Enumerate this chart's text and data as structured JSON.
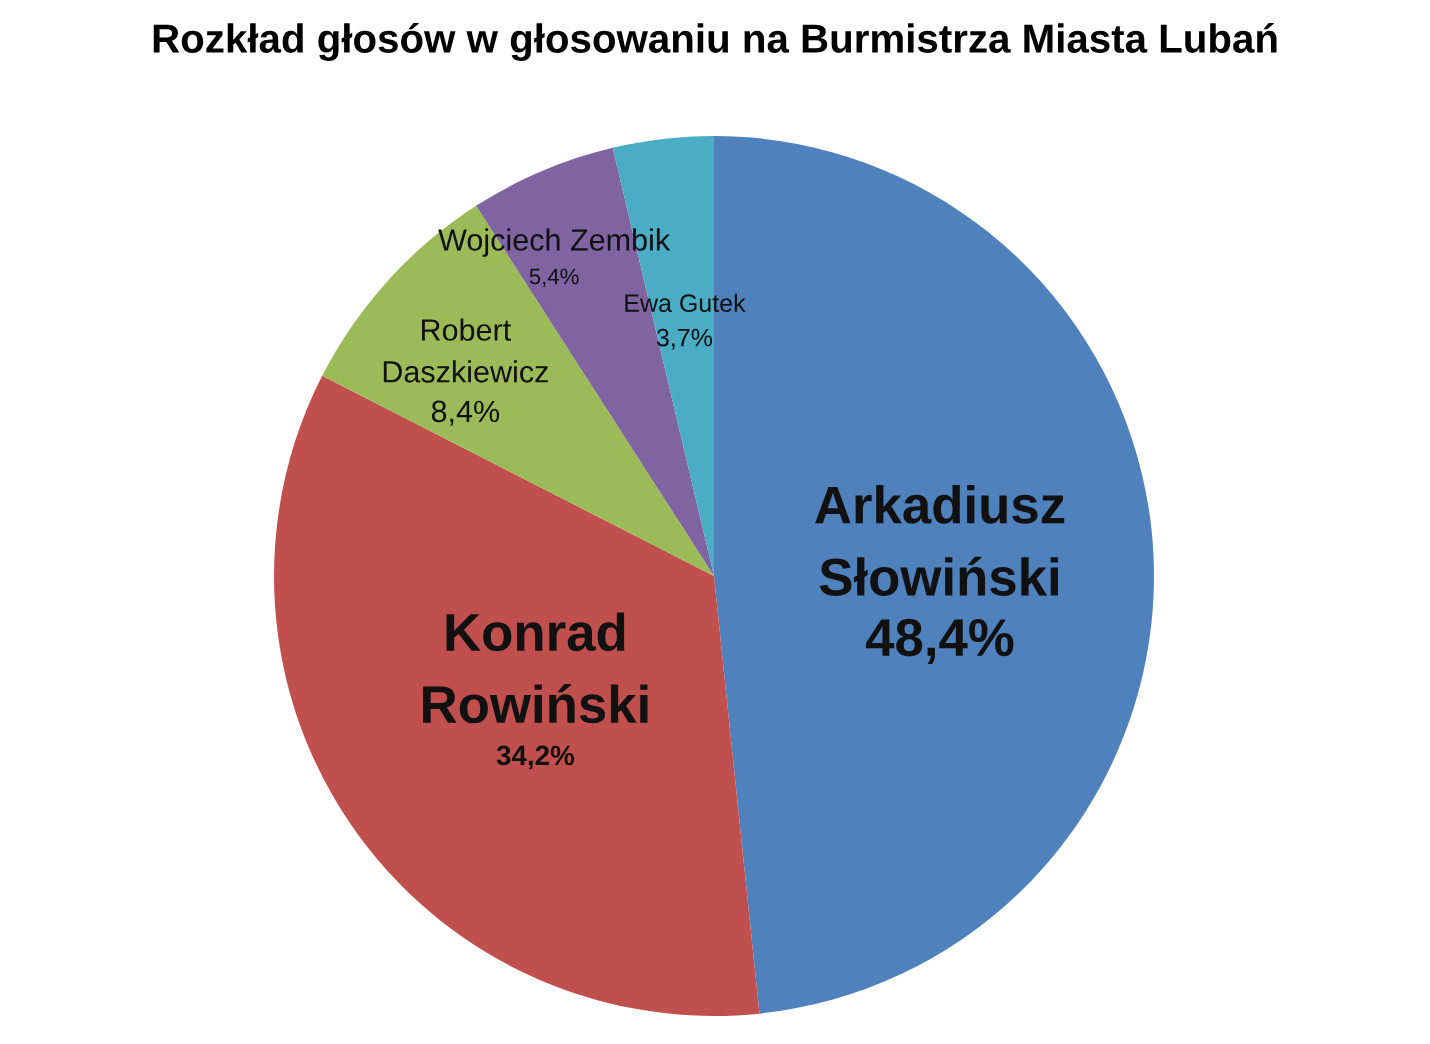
{
  "chart_data": {
    "type": "pie",
    "title": "Rozkład głosów w głosowaniu na Burmistrza Miasta Lubań",
    "categories": [
      "Arkadiusz Słowiński",
      "Konrad Rowiński",
      "Robert Daszkiewicz",
      "Wojciech Zembik",
      "Ewa Gutek"
    ],
    "values": [
      48.4,
      34.2,
      8.4,
      5.4,
      3.7
    ],
    "colors": [
      "#4f81bd",
      "#c0504d",
      "#9bbb59",
      "#8064a2",
      "#4bacc6"
    ],
    "value_labels": [
      "48,4%",
      "34,2%",
      "8,4%",
      "5,4%",
      "3,7%"
    ]
  }
}
